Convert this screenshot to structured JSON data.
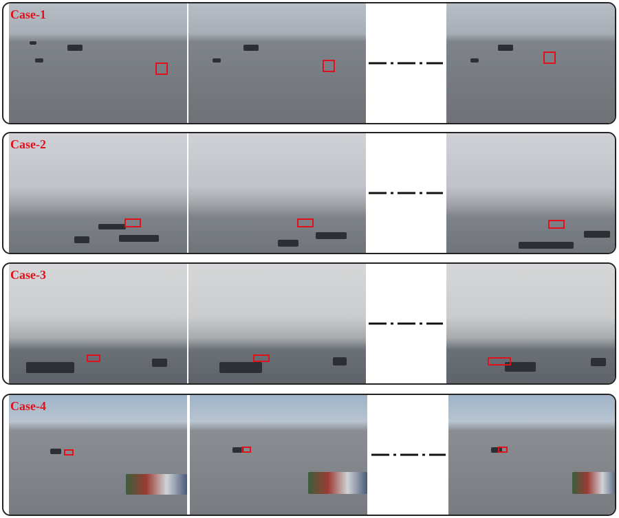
{
  "cases": [
    {
      "label": "Case-1"
    },
    {
      "label": "Case-2"
    },
    {
      "label": "Case-3"
    },
    {
      "label": "Case-4"
    }
  ],
  "colors": {
    "label": "#e3101b",
    "box": "#e3101b",
    "border": "#222222"
  }
}
